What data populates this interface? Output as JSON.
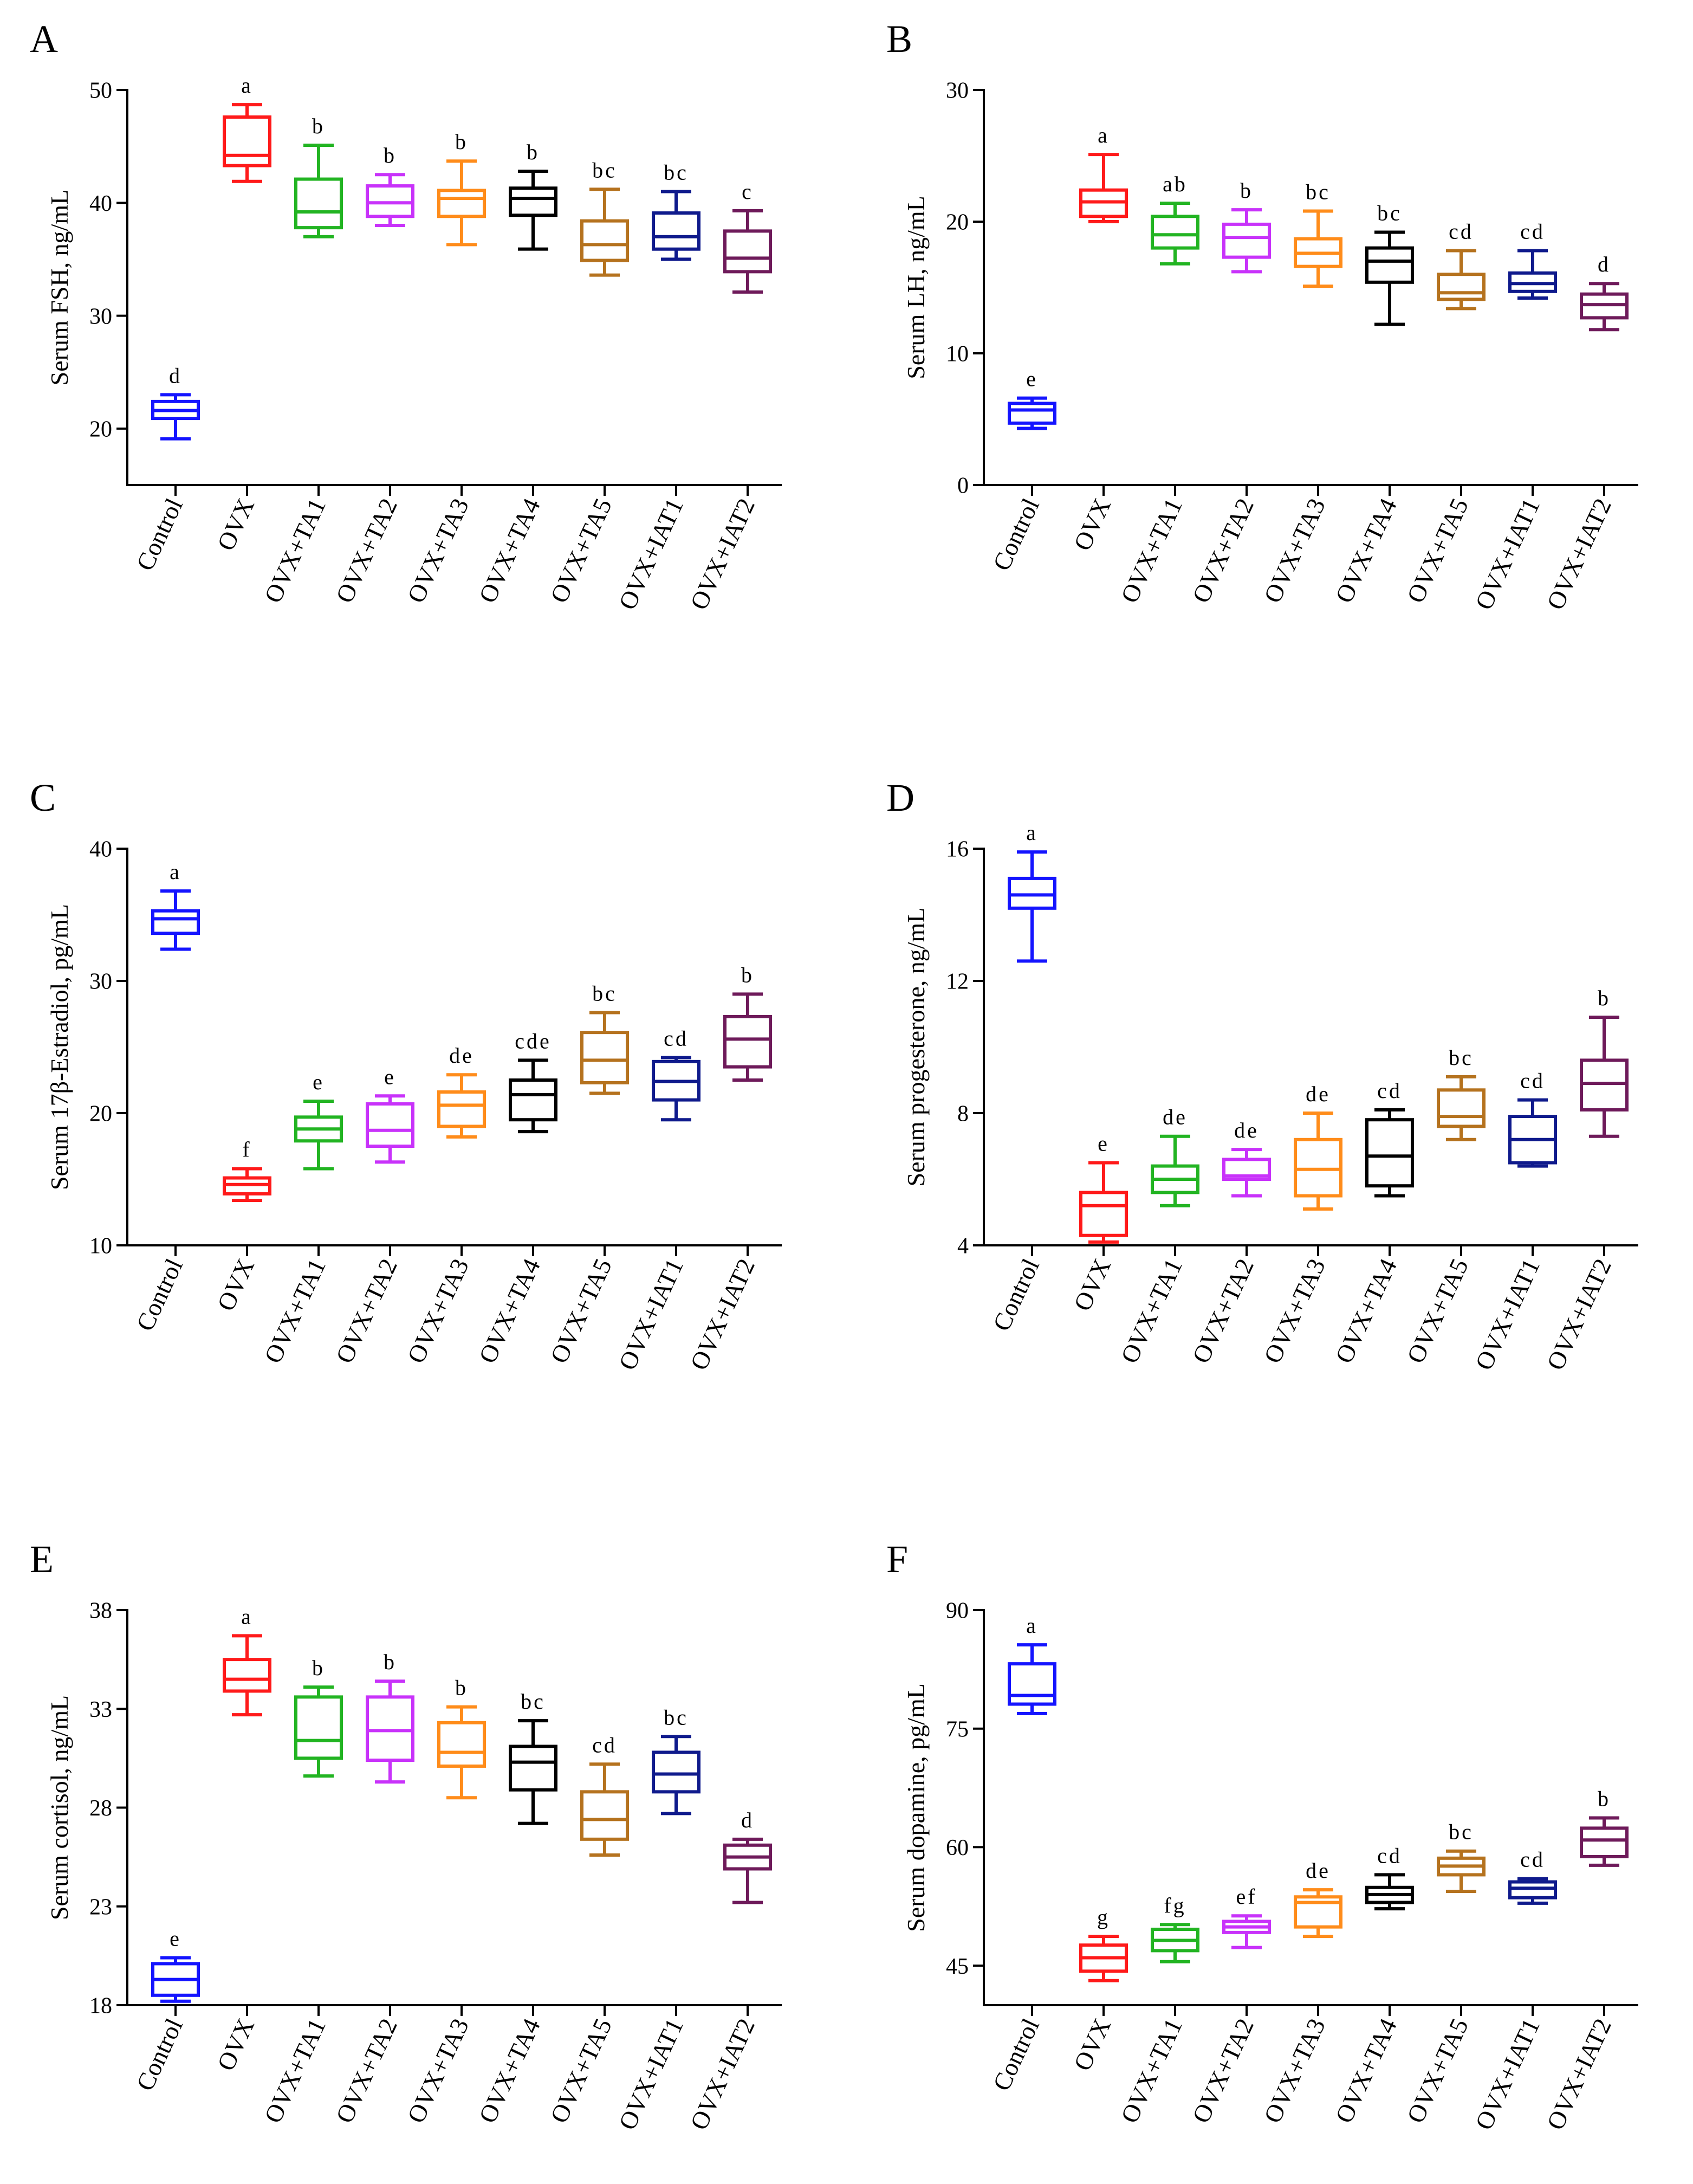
{
  "series_colors": [
    "#1414FF",
    "#FF1A1A",
    "#22B422",
    "#C832FA",
    "#FF8C1A",
    "#000000",
    "#B5721E",
    "#0F1A8C",
    "#6E1A5A"
  ],
  "chart_data": [
    {
      "panel_label": "A",
      "type": "box",
      "title": "",
      "xlabel": "",
      "ylabel": "Serum FSH, ng/mL",
      "ylim": [
        15,
        50
      ],
      "yticks": [
        20,
        30,
        40,
        50
      ],
      "categories": [
        "Control",
        "OVX",
        "OVX+TA1",
        "OVX+TA2",
        "OVX+TA3",
        "OVX+TA4",
        "OVX+TA5",
        "OVX+IAT1",
        "OVX+IAT2"
      ],
      "boxes": [
        {
          "min": 19.1,
          "q1": 20.9,
          "median": 21.6,
          "q3": 22.4,
          "max": 23.0,
          "letter": "d"
        },
        {
          "min": 41.9,
          "q1": 43.3,
          "median": 44.2,
          "q3": 47.6,
          "max": 48.7,
          "letter": "a"
        },
        {
          "min": 37.0,
          "q1": 37.8,
          "median": 39.2,
          "q3": 42.1,
          "max": 45.1,
          "letter": "b"
        },
        {
          "min": 38.0,
          "q1": 38.8,
          "median": 40.0,
          "q3": 41.5,
          "max": 42.5,
          "letter": "b"
        },
        {
          "min": 36.3,
          "q1": 38.8,
          "median": 40.4,
          "q3": 41.1,
          "max": 43.7,
          "letter": "b"
        },
        {
          "min": 35.9,
          "q1": 38.9,
          "median": 40.4,
          "q3": 41.3,
          "max": 42.8,
          "letter": "b"
        },
        {
          "min": 33.6,
          "q1": 34.9,
          "median": 36.3,
          "q3": 38.4,
          "max": 41.2,
          "letter": "bc"
        },
        {
          "min": 35.0,
          "q1": 35.9,
          "median": 37.0,
          "q3": 39.1,
          "max": 41.0,
          "letter": "bc"
        },
        {
          "min": 32.1,
          "q1": 33.9,
          "median": 35.1,
          "q3": 37.5,
          "max": 39.3,
          "letter": "c"
        }
      ]
    },
    {
      "panel_label": "B",
      "type": "box",
      "title": "",
      "xlabel": "",
      "ylabel": "Serum LH, ng/mL",
      "ylim": [
        0,
        30
      ],
      "yticks": [
        0,
        10,
        20,
        30
      ],
      "categories": [
        "Control",
        "OVX",
        "OVX+TA1",
        "OVX+TA2",
        "OVX+TA3",
        "OVX+TA4",
        "OVX+TA5",
        "OVX+IAT1",
        "OVX+IAT2"
      ],
      "boxes": [
        {
          "min": 4.3,
          "q1": 4.7,
          "median": 5.7,
          "q3": 6.2,
          "max": 6.6,
          "letter": "e"
        },
        {
          "min": 20.0,
          "q1": 20.4,
          "median": 21.5,
          "q3": 22.4,
          "max": 25.1,
          "letter": "a"
        },
        {
          "min": 16.8,
          "q1": 18.0,
          "median": 19.0,
          "q3": 20.4,
          "max": 21.4,
          "letter": "ab"
        },
        {
          "min": 16.2,
          "q1": 17.3,
          "median": 18.8,
          "q3": 19.8,
          "max": 20.9,
          "letter": "b"
        },
        {
          "min": 15.1,
          "q1": 16.6,
          "median": 17.6,
          "q3": 18.7,
          "max": 20.8,
          "letter": "bc"
        },
        {
          "min": 12.2,
          "q1": 15.4,
          "median": 17.0,
          "q3": 18.0,
          "max": 19.2,
          "letter": "bc"
        },
        {
          "min": 13.4,
          "q1": 14.1,
          "median": 14.6,
          "q3": 16.0,
          "max": 17.8,
          "letter": "cd"
        },
        {
          "min": 14.2,
          "q1": 14.7,
          "median": 15.3,
          "q3": 16.1,
          "max": 17.8,
          "letter": "cd"
        },
        {
          "min": 11.8,
          "q1": 12.7,
          "median": 13.7,
          "q3": 14.5,
          "max": 15.3,
          "letter": "d"
        }
      ]
    },
    {
      "panel_label": "C",
      "type": "box",
      "title": "",
      "xlabel": "",
      "ylabel": "Serum 17β-Estradiol, pg/mL",
      "ylim": [
        10,
        40
      ],
      "yticks": [
        10,
        20,
        30,
        40
      ],
      "categories": [
        "Control",
        "OVX",
        "OVX+TA1",
        "OVX+TA2",
        "OVX+TA3",
        "OVX+TA4",
        "OVX+TA5",
        "OVX+IAT1",
        "OVX+IAT2"
      ],
      "boxes": [
        {
          "min": 32.4,
          "q1": 33.6,
          "median": 34.7,
          "q3": 35.3,
          "max": 36.8,
          "letter": "a"
        },
        {
          "min": 13.4,
          "q1": 13.9,
          "median": 14.6,
          "q3": 15.1,
          "max": 15.8,
          "letter": "f"
        },
        {
          "min": 15.8,
          "q1": 17.9,
          "median": 18.8,
          "q3": 19.7,
          "max": 20.9,
          "letter": "e"
        },
        {
          "min": 16.3,
          "q1": 17.5,
          "median": 18.7,
          "q3": 20.7,
          "max": 21.3,
          "letter": "e"
        },
        {
          "min": 18.2,
          "q1": 19.0,
          "median": 20.6,
          "q3": 21.6,
          "max": 22.9,
          "letter": "de"
        },
        {
          "min": 18.6,
          "q1": 19.5,
          "median": 21.4,
          "q3": 22.5,
          "max": 24.0,
          "letter": "cde"
        },
        {
          "min": 21.5,
          "q1": 22.3,
          "median": 24.0,
          "q3": 26.1,
          "max": 27.6,
          "letter": "bc"
        },
        {
          "min": 19.5,
          "q1": 21.0,
          "median": 22.4,
          "q3": 23.9,
          "max": 24.2,
          "letter": "cd"
        },
        {
          "min": 22.5,
          "q1": 23.5,
          "median": 25.6,
          "q3": 27.3,
          "max": 29.0,
          "letter": "b"
        }
      ]
    },
    {
      "panel_label": "D",
      "type": "box",
      "title": "",
      "xlabel": "",
      "ylabel": "Serum progesterone, ng/mL",
      "ylim": [
        4,
        16
      ],
      "yticks": [
        4,
        8,
        12,
        16
      ],
      "categories": [
        "Control",
        "OVX",
        "OVX+TA1",
        "OVX+TA2",
        "OVX+TA3",
        "OVX+TA4",
        "OVX+TA5",
        "OVX+IAT1",
        "OVX+IAT2"
      ],
      "boxes": [
        {
          "min": 12.6,
          "q1": 14.2,
          "median": 14.6,
          "q3": 15.1,
          "max": 15.9,
          "letter": "a"
        },
        {
          "min": 4.1,
          "q1": 4.3,
          "median": 5.2,
          "q3": 5.6,
          "max": 6.5,
          "letter": "e"
        },
        {
          "min": 5.2,
          "q1": 5.6,
          "median": 6.0,
          "q3": 6.4,
          "max": 7.3,
          "letter": "de"
        },
        {
          "min": 5.5,
          "q1": 6.0,
          "median": 6.1,
          "q3": 6.6,
          "max": 6.9,
          "letter": "de"
        },
        {
          "min": 5.1,
          "q1": 5.5,
          "median": 6.3,
          "q3": 7.2,
          "max": 8.0,
          "letter": "de"
        },
        {
          "min": 5.5,
          "q1": 5.8,
          "median": 6.7,
          "q3": 7.8,
          "max": 8.1,
          "letter": "cd"
        },
        {
          "min": 7.2,
          "q1": 7.6,
          "median": 7.9,
          "q3": 8.7,
          "max": 9.1,
          "letter": "bc"
        },
        {
          "min": 6.4,
          "q1": 6.5,
          "median": 7.2,
          "q3": 7.9,
          "max": 8.4,
          "letter": "cd"
        },
        {
          "min": 7.3,
          "q1": 8.1,
          "median": 8.9,
          "q3": 9.6,
          "max": 10.9,
          "letter": "b"
        }
      ]
    },
    {
      "panel_label": "E",
      "type": "box",
      "title": "",
      "xlabel": "",
      "ylabel": "Serum cortisol, ng/mL",
      "ylim": [
        18,
        38
      ],
      "yticks": [
        18,
        23,
        28,
        33,
        38
      ],
      "categories": [
        "Control",
        "OVX",
        "OVX+TA1",
        "OVX+TA2",
        "OVX+TA3",
        "OVX+TA4",
        "OVX+TA5",
        "OVX+IAT1",
        "OVX+IAT2"
      ],
      "boxes": [
        {
          "min": 18.2,
          "q1": 18.5,
          "median": 19.3,
          "q3": 20.1,
          "max": 20.4,
          "letter": "e"
        },
        {
          "min": 32.7,
          "q1": 33.9,
          "median": 34.5,
          "q3": 35.5,
          "max": 36.7,
          "letter": "a"
        },
        {
          "min": 29.6,
          "q1": 30.5,
          "median": 31.4,
          "q3": 33.6,
          "max": 34.1,
          "letter": "b"
        },
        {
          "min": 29.3,
          "q1": 30.4,
          "median": 31.9,
          "q3": 33.6,
          "max": 34.4,
          "letter": "b"
        },
        {
          "min": 28.5,
          "q1": 30.1,
          "median": 30.8,
          "q3": 32.3,
          "max": 33.1,
          "letter": "b"
        },
        {
          "min": 27.2,
          "q1": 28.9,
          "median": 30.3,
          "q3": 31.1,
          "max": 32.4,
          "letter": "bc"
        },
        {
          "min": 25.6,
          "q1": 26.4,
          "median": 27.4,
          "q3": 28.8,
          "max": 30.2,
          "letter": "cd"
        },
        {
          "min": 27.7,
          "q1": 28.8,
          "median": 29.7,
          "q3": 30.8,
          "max": 31.6,
          "letter": "bc"
        },
        {
          "min": 23.2,
          "q1": 24.9,
          "median": 25.5,
          "q3": 26.1,
          "max": 26.4,
          "letter": "d"
        }
      ]
    },
    {
      "panel_label": "F",
      "type": "box",
      "title": "",
      "xlabel": "",
      "ylabel": "Serum dopamine, pg/mL",
      "ylim": [
        40,
        90
      ],
      "yticks": [
        45,
        60,
        75,
        90
      ],
      "categories": [
        "Control",
        "OVX",
        "OVX+TA1",
        "OVX+TA2",
        "OVX+TA3",
        "OVX+TA4",
        "OVX+TA5",
        "OVX+IAT1",
        "OVX+IAT2"
      ],
      "boxes": [
        {
          "min": 76.9,
          "q1": 78.1,
          "median": 79.2,
          "q3": 83.2,
          "max": 85.6,
          "letter": "a"
        },
        {
          "min": 43.1,
          "q1": 44.3,
          "median": 46.0,
          "q3": 47.6,
          "max": 48.7,
          "letter": "g"
        },
        {
          "min": 45.5,
          "q1": 46.9,
          "median": 48.2,
          "q3": 49.6,
          "max": 50.2,
          "letter": "fg"
        },
        {
          "min": 47.3,
          "q1": 49.2,
          "median": 49.9,
          "q3": 50.6,
          "max": 51.3,
          "letter": "ef"
        },
        {
          "min": 48.7,
          "q1": 49.9,
          "median": 53.0,
          "q3": 53.7,
          "max": 54.6,
          "letter": "de"
        },
        {
          "min": 52.2,
          "q1": 53.0,
          "median": 54.0,
          "q3": 54.9,
          "max": 56.5,
          "letter": "cd"
        },
        {
          "min": 54.4,
          "q1": 56.5,
          "median": 57.6,
          "q3": 58.6,
          "max": 59.5,
          "letter": "bc"
        },
        {
          "min": 52.9,
          "q1": 53.6,
          "median": 54.8,
          "q3": 55.6,
          "max": 56.0,
          "letter": "cd"
        },
        {
          "min": 57.7,
          "q1": 58.8,
          "median": 60.9,
          "q3": 62.4,
          "max": 63.7,
          "letter": "b"
        }
      ]
    }
  ]
}
